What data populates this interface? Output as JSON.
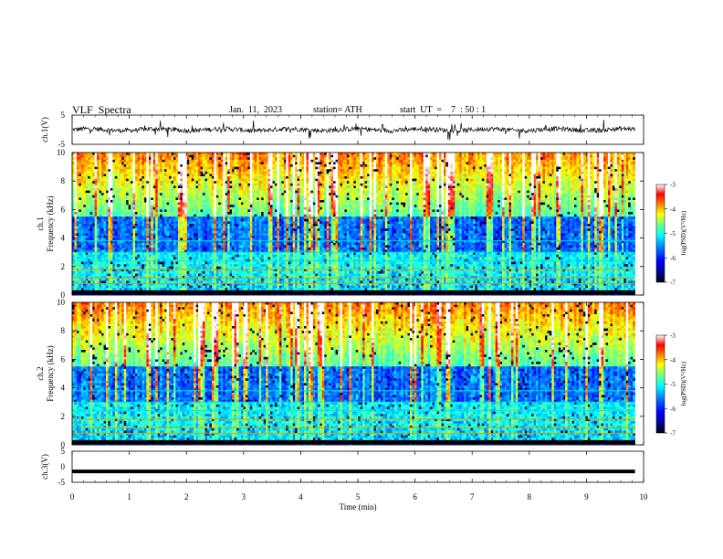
{
  "header": {
    "title": "VLF  Spectra",
    "date": "Jan.  11,  2023",
    "station": "station= ATH",
    "start": "start  UT  =    7  : 50 : 1"
  },
  "chart_data": [
    {
      "type": "line",
      "panel": "ch1-waveform",
      "ylabel": "ch.1(V)",
      "ylim": [
        -5,
        5
      ],
      "yticks": [
        "5",
        "-5"
      ],
      "xlim": [
        0,
        10
      ],
      "data_extent_min": 9.85,
      "baseline": 0,
      "description_values": "noisy waveform around 0 V with spikes"
    },
    {
      "type": "heatmap",
      "panel": "ch1-spectrogram",
      "ylabel": "ch.1\nFrequency  (kHz)",
      "ylim": [
        0,
        10
      ],
      "yticks": [
        "0",
        "2",
        "4",
        "6",
        "8",
        "10"
      ],
      "xlim": [
        0,
        10
      ],
      "data_extent_min": 9.85,
      "colorbar": {
        "label": "log(PSD)(V²/Hz)",
        "range": [
          -7,
          -3
        ],
        "ticks": [
          "-3",
          "-4",
          "-5",
          "-6",
          "-7"
        ]
      }
    },
    {
      "type": "heatmap",
      "panel": "ch2-spectrogram",
      "ylabel": "ch.2\nFrequency  (kHz)",
      "ylim": [
        0,
        10
      ],
      "yticks": [
        "0",
        "2",
        "4",
        "6",
        "8",
        "10"
      ],
      "xlim": [
        0,
        10
      ],
      "data_extent_min": 9.85,
      "colorbar": {
        "label": "log(PSD)(V²/Hz)",
        "range": [
          -7,
          -3
        ],
        "ticks": [
          "-3",
          "-4",
          "-5",
          "-6",
          "-7"
        ]
      }
    },
    {
      "type": "line",
      "panel": "ch3-waveform",
      "ylabel": "ch.3(V)",
      "ylim": [
        -5,
        5
      ],
      "yticks": [
        "5",
        "0",
        "-5"
      ],
      "xlim": [
        0,
        10
      ],
      "data_extent_min": 9.85,
      "constant_value": -1.5,
      "xlabel": "Time  (min)",
      "xticks": [
        "0",
        "1",
        "2",
        "3",
        "4",
        "5",
        "6",
        "7",
        "8",
        "9",
        "10"
      ]
    }
  ],
  "colors": {
    "trace": "#000000",
    "colormap": [
      "#000000",
      "#00007f",
      "#0000ff",
      "#007fff",
      "#00ffff",
      "#7fff7f",
      "#ffff00",
      "#ff7f00",
      "#ff0000",
      "#ffffff"
    ]
  }
}
